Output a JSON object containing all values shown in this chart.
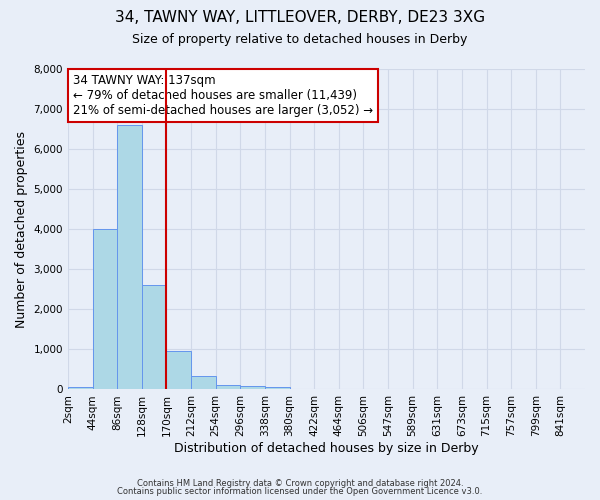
{
  "title": "34, TAWNY WAY, LITTLEOVER, DERBY, DE23 3XG",
  "subtitle": "Size of property relative to detached houses in Derby",
  "xlabel": "Distribution of detached houses by size in Derby",
  "ylabel": "Number of detached properties",
  "bin_labels": [
    "2sqm",
    "44sqm",
    "86sqm",
    "128sqm",
    "170sqm",
    "212sqm",
    "254sqm",
    "296sqm",
    "338sqm",
    "380sqm",
    "422sqm",
    "464sqm",
    "506sqm",
    "547sqm",
    "589sqm",
    "631sqm",
    "673sqm",
    "715sqm",
    "757sqm",
    "799sqm",
    "841sqm"
  ],
  "bar_values": [
    50,
    4000,
    6600,
    2600,
    950,
    330,
    120,
    80,
    50,
    0,
    0,
    0,
    0,
    0,
    0,
    0,
    0,
    0,
    0,
    0,
    0
  ],
  "bar_color": "#add8e6",
  "bar_edge_color": "#6495ed",
  "grid_color": "#d0d8e8",
  "background_color": "#e8eef8",
  "vline_x_index": 3,
  "vline_color": "#cc0000",
  "annotation_title": "34 TAWNY WAY: 137sqm",
  "annotation_line1": "← 79% of detached houses are smaller (11,439)",
  "annotation_line2": "21% of semi-detached houses are larger (3,052) →",
  "annotation_box_color": "#ffffff",
  "annotation_box_edge": "#cc0000",
  "ylim": [
    0,
    8000
  ],
  "yticks": [
    0,
    1000,
    2000,
    3000,
    4000,
    5000,
    6000,
    7000,
    8000
  ],
  "footer1": "Contains HM Land Registry data © Crown copyright and database right 2024.",
  "footer2": "Contains public sector information licensed under the Open Government Licence v3.0."
}
